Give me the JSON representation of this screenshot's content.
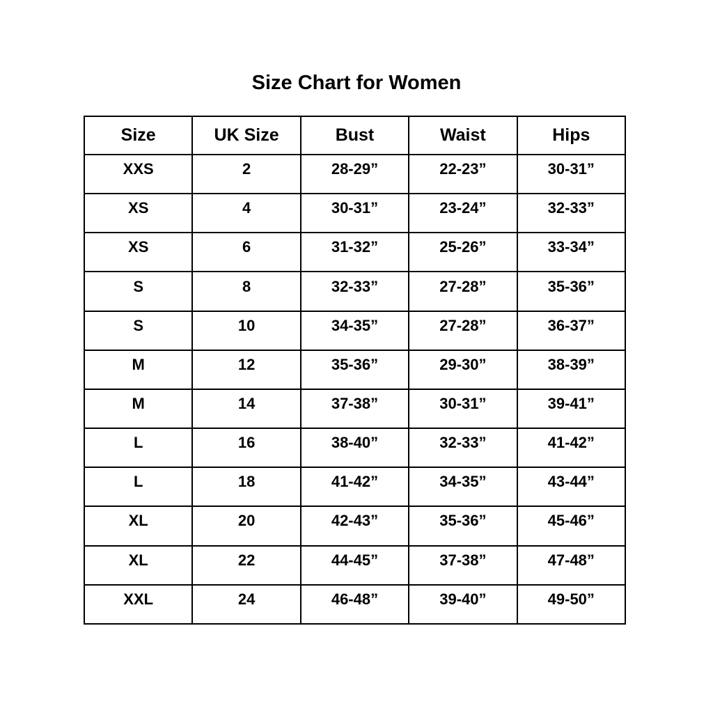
{
  "title": "Size Chart for Women",
  "chart_data": {
    "type": "table",
    "title": "Size Chart for Women",
    "columns": [
      "Size",
      "UK Size",
      "Bust",
      "Waist",
      "Hips"
    ],
    "rows": [
      [
        "XXS",
        "2",
        "28-29”",
        "22-23”",
        "30-31”"
      ],
      [
        "XS",
        "4",
        "30-31”",
        "23-24”",
        "32-33”"
      ],
      [
        "XS",
        "6",
        "31-32”",
        "25-26”",
        "33-34”"
      ],
      [
        "S",
        "8",
        "32-33”",
        "27-28”",
        "35-36”"
      ],
      [
        "S",
        "10",
        "34-35”",
        "27-28”",
        "36-37”"
      ],
      [
        "M",
        "12",
        "35-36”",
        "29-30”",
        "38-39”"
      ],
      [
        "M",
        "14",
        "37-38”",
        "30-31”",
        "39-41”"
      ],
      [
        "L",
        "16",
        "38-40”",
        "32-33”",
        "41-42”"
      ],
      [
        "L",
        "18",
        "41-42”",
        "34-35”",
        "43-44”"
      ],
      [
        "XL",
        "20",
        "42-43”",
        "35-36”",
        "45-46”"
      ],
      [
        "XL",
        "22",
        "44-45”",
        "37-38”",
        "47-48”"
      ],
      [
        "XXL",
        "24",
        "46-48”",
        "39-40”",
        "49-50”"
      ]
    ],
    "colors": {
      "border": "#000000",
      "background": "#ffffff",
      "text": "#000000"
    },
    "layout": {
      "grid": true,
      "header_row": true,
      "units": "inches"
    }
  }
}
